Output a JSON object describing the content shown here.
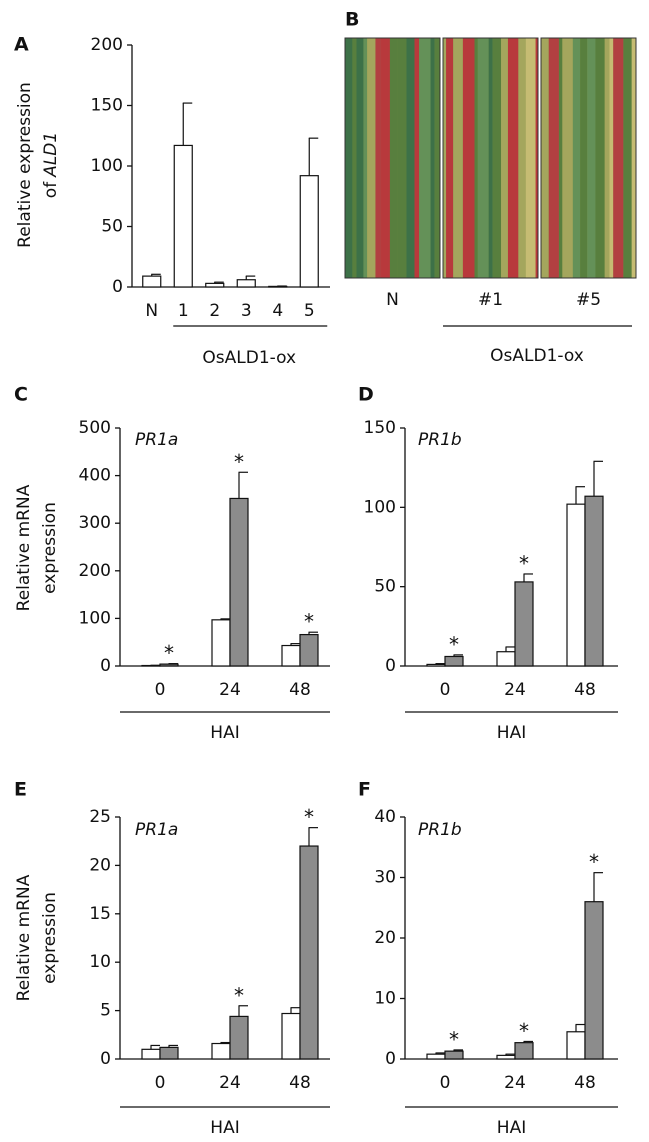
{
  "chart_data": [
    {
      "type": "bar",
      "panel": "A",
      "ylabel": [
        "Relative expression",
        "of"
      ],
      "ylabel_italic": "ALD1",
      "categories": [
        "N",
        "1",
        "2",
        "3",
        "4",
        "5"
      ],
      "group_label": "OsALD1-ox",
      "series": [
        {
          "color": "#ffffff",
          "values": [
            9,
            117,
            3,
            6,
            0.5,
            92
          ],
          "errors": [
            1.5,
            35,
            1,
            3,
            0.3,
            31
          ]
        }
      ],
      "ylim": [
        0,
        200
      ],
      "yticks": [
        0,
        50,
        100,
        150,
        200
      ]
    },
    {
      "type": "bar",
      "panel": "C",
      "gene": "PR1a",
      "ylabel": [
        "Relative mRNA",
        "expression"
      ],
      "categories": [
        "0",
        "24",
        "48"
      ],
      "xlabel": "HAI",
      "series": [
        {
          "color": "#ffffff",
          "values": [
            1,
            97,
            43
          ],
          "errors": [
            0.5,
            2,
            4
          ]
        },
        {
          "color": "#8c8c8c",
          "values": [
            4,
            352,
            66
          ],
          "errors": [
            1,
            55,
            5
          ],
          "sig": [
            "*",
            "*",
            "*"
          ]
        }
      ],
      "ylim": [
        0,
        500
      ],
      "yticks": [
        0,
        100,
        200,
        300,
        400,
        500
      ]
    },
    {
      "type": "bar",
      "panel": "D",
      "gene": "PR1b",
      "categories": [
        "0",
        "24",
        "48"
      ],
      "xlabel": "HAI",
      "series": [
        {
          "color": "#ffffff",
          "values": [
            1,
            9,
            102
          ],
          "errors": [
            0.5,
            3,
            11
          ]
        },
        {
          "color": "#8c8c8c",
          "values": [
            6,
            53,
            107
          ],
          "errors": [
            1,
            5,
            22
          ],
          "sig": [
            "*",
            "*",
            null
          ]
        }
      ],
      "ylim": [
        0,
        150
      ],
      "yticks": [
        0,
        50,
        100,
        150
      ]
    },
    {
      "type": "bar",
      "panel": "E",
      "gene": "PR1a",
      "ylabel": [
        "Relative mRNA",
        "expression"
      ],
      "categories": [
        "0",
        "24",
        "48"
      ],
      "xlabel": "HAI",
      "series": [
        {
          "color": "#ffffff",
          "values": [
            1.0,
            1.6,
            4.7
          ],
          "errors": [
            0.4,
            0.1,
            0.6
          ]
        },
        {
          "color": "#8c8c8c",
          "values": [
            1.2,
            4.4,
            22
          ],
          "errors": [
            0.2,
            1.1,
            1.9
          ],
          "sig": [
            null,
            "*",
            "*"
          ]
        }
      ],
      "ylim": [
        0,
        25
      ],
      "yticks": [
        0,
        5,
        10,
        15,
        20,
        25
      ]
    },
    {
      "type": "bar",
      "panel": "F",
      "gene": "PR1b",
      "categories": [
        "0",
        "24",
        "48"
      ],
      "xlabel": "HAI",
      "series": [
        {
          "color": "#ffffff",
          "values": [
            0.8,
            0.6,
            4.5
          ],
          "errors": [
            0.2,
            0.2,
            1.2
          ]
        },
        {
          "color": "#8c8c8c",
          "values": [
            1.3,
            2.7,
            26
          ],
          "errors": [
            0.2,
            0.2,
            4.8
          ],
          "sig": [
            "*",
            "*",
            "*"
          ]
        }
      ],
      "ylim": [
        0,
        40
      ],
      "yticks": [
        0,
        10,
        20,
        30,
        40
      ]
    }
  ],
  "photo_panel": {
    "panel": "B",
    "images": [
      "N",
      "#1",
      "#5"
    ],
    "group_label": "OsALD1-ox"
  }
}
